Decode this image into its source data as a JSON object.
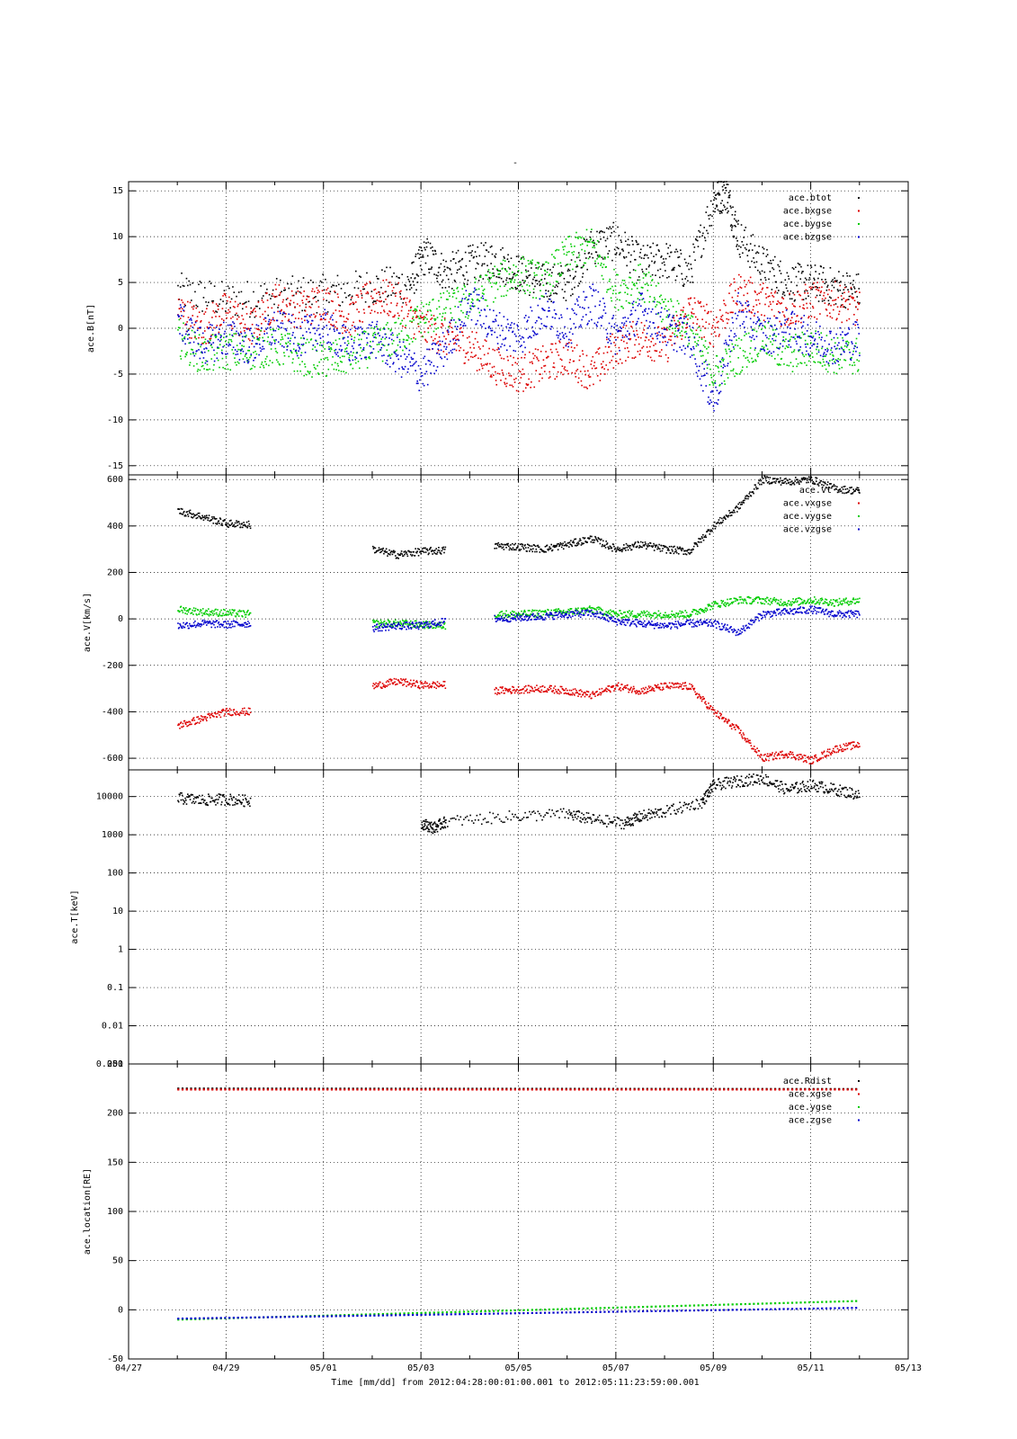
{
  "figure": {
    "title": "-",
    "x_axis_title": "Time [mm/dd]  from 2012:04:28:00:01:00.001  to  2012:05:11:23:59:00.001",
    "x_tick_labels": [
      "04/27",
      "04/29",
      "05/01",
      "05/03",
      "05/05",
      "05/07",
      "05/09",
      "05/11",
      "05/13"
    ],
    "x_range_days": [
      "2012-04-27",
      "2012-05-13"
    ]
  },
  "colors": {
    "black": "#000000",
    "red": "#dd0000",
    "green": "#00cc00",
    "blue": "#0000cc"
  },
  "chart_data": [
    {
      "type": "scatter",
      "ylabel": "ace.B[nT]",
      "ylim": [
        -16,
        16
      ],
      "y_ticks": [
        -15,
        -10,
        -5,
        0,
        5,
        10,
        15
      ],
      "y_tick_labels": [
        "-15",
        "-10",
        "-5",
        "0",
        "5",
        "10",
        "15"
      ],
      "grid": true,
      "legend": "top-right",
      "series": [
        {
          "name": "ace.btot",
          "color": "black",
          "x": [
            "04/28 00:00",
            "04/29 00:00",
            "04/30 00:00",
            "05/01 00:00",
            "05/02 00:00",
            "05/02 18:00",
            "05/03 02:00",
            "05/03 12:00",
            "05/04 00:00",
            "05/04 12:00",
            "05/05 00:00",
            "05/05 12:00",
            "05/06 00:00",
            "05/06 12:00",
            "05/07 00:00",
            "05/07 12:00",
            "05/08 00:00",
            "05/08 12:00",
            "05/09 00:00",
            "05/09 06:00",
            "05/09 12:00",
            "05/10 00:00",
            "05/10 12:00",
            "05/11 00:00",
            "05/11 12:00",
            "05/12 00:00"
          ],
          "y": [
            4,
            3,
            3.5,
            3.8,
            4.5,
            4.8,
            8,
            6,
            7,
            7.5,
            6,
            5,
            5,
            9,
            9.5,
            7,
            7.5,
            6,
            14,
            15,
            10,
            7,
            5,
            5,
            4.5,
            4
          ]
        },
        {
          "name": "ace.bxgse",
          "color": "red",
          "x": [
            "04/28 00:00",
            "04/28 12:00",
            "04/29 00:00",
            "04/29 12:00",
            "04/30 00:00",
            "04/30 12:00",
            "05/01 00:00",
            "05/01 12:00",
            "05/02 00:00",
            "05/02 12:00",
            "05/03 00:00",
            "05/03 12:00",
            "05/04 00:00",
            "05/04 12:00",
            "05/05 00:00",
            "05/05 12:00",
            "05/06 00:00",
            "05/06 12:00",
            "05/07 00:00",
            "05/07 12:00",
            "05/08 00:00",
            "05/08 12:00",
            "05/09 00:00",
            "05/09 12:00",
            "05/10 00:00",
            "05/10 12:00",
            "05/11 00:00",
            "05/11 12:00",
            "05/12 00:00"
          ],
          "y": [
            2,
            0,
            2,
            0,
            3,
            2,
            3,
            1,
            3.5,
            3,
            0,
            -1,
            -2,
            -4,
            -5,
            -4,
            -3,
            -5,
            -2,
            -1,
            -2,
            2,
            0,
            4,
            3,
            2,
            3,
            3,
            2
          ]
        },
        {
          "name": "ace.bygse",
          "color": "green",
          "x": [
            "04/28 00:00",
            "04/28 12:00",
            "04/29 00:00",
            "04/29 12:00",
            "04/30 00:00",
            "04/30 12:00",
            "05/01 00:00",
            "05/01 12:00",
            "05/02 00:00",
            "05/02 12:00",
            "05/03 00:00",
            "05/03 12:00",
            "05/04 00:00",
            "05/04 12:00",
            "05/05 00:00",
            "05/05 12:00",
            "05/06 00:00",
            "05/06 12:00",
            "05/07 00:00",
            "05/07 12:00",
            "05/08 00:00",
            "05/08 12:00",
            "05/09 00:00",
            "05/09 12:00",
            "05/10 00:00",
            "05/10 12:00",
            "05/11 00:00",
            "05/11 12:00",
            "05/12 00:00"
          ],
          "y": [
            -1,
            -3,
            -2.5,
            -2.5,
            -2,
            -3,
            -3.5,
            -3,
            -2,
            -1,
            1,
            2,
            3,
            5,
            6,
            5,
            8,
            9,
            4,
            5,
            2,
            0,
            -5,
            -3,
            -1,
            -3,
            -2,
            -3,
            -3
          ]
        },
        {
          "name": "ace.bzgse",
          "color": "blue",
          "x": [
            "04/28 00:00",
            "04/28 12:00",
            "04/29 00:00",
            "04/29 12:00",
            "04/30 00:00",
            "04/30 12:00",
            "05/01 00:00",
            "05/01 12:00",
            "05/02 00:00",
            "05/02 12:00",
            "05/03 00:00",
            "05/03 12:00",
            "05/04 00:00",
            "05/04 12:00",
            "05/05 00:00",
            "05/05 12:00",
            "05/06 00:00",
            "05/06 12:00",
            "05/07 00:00",
            "05/07 12:00",
            "05/08 00:00",
            "05/08 12:00",
            "05/09 00:00",
            "05/09 12:00",
            "05/10 00:00",
            "05/10 12:00",
            "05/11 00:00",
            "05/11 12:00",
            "05/12 00:00"
          ],
          "y": [
            1,
            -2,
            -1,
            -2,
            0,
            -1,
            0,
            -2,
            -1,
            -3,
            -5,
            -2,
            3,
            0,
            -1,
            2,
            0,
            3,
            -1,
            2,
            0,
            -1,
            -8,
            2,
            -1,
            0,
            -1,
            -2,
            -1
          ]
        }
      ]
    },
    {
      "type": "scatter",
      "ylabel": "ace.V[km/s]",
      "ylim": [
        -650,
        620
      ],
      "y_ticks": [
        -600,
        -400,
        -200,
        0,
        200,
        400,
        600
      ],
      "y_tick_labels": [
        "-600",
        "-400",
        "-200",
        "0",
        "200",
        "400",
        "600"
      ],
      "grid": true,
      "legend": "top-right",
      "series": [
        {
          "name": "ace.vt",
          "color": "black",
          "x": [
            "04/28 00:00",
            "04/28 12:00",
            "04/29 00:00",
            "04/29 12:00",
            "05/02 00:00",
            "05/02 12:00",
            "05/03 00:00",
            "05/03 12:00",
            "05/04 00:00",
            "05/04 12:00",
            "05/05 00:00",
            "05/05 12:00",
            "05/06 00:00",
            "05/06 12:00",
            "05/07 00:00",
            "05/07 12:00",
            "05/08 00:00",
            "05/08 12:00",
            "05/09 00:00",
            "05/09 12:00",
            "05/10 00:00",
            "05/10 12:00",
            "05/11 00:00",
            "05/11 12:00",
            "05/12 00:00"
          ],
          "y": [
            465,
            440,
            410,
            405,
            300,
            275,
            290,
            295,
            null,
            315,
            310,
            300,
            320,
            345,
            300,
            320,
            300,
            290,
            400,
            480,
            600,
            590,
            600,
            560,
            550
          ]
        },
        {
          "name": "ace.vxgse",
          "color": "red",
          "x": [
            "04/28 00:00",
            "04/28 12:00",
            "04/29 00:00",
            "04/29 12:00",
            "05/02 00:00",
            "05/02 12:00",
            "05/03 00:00",
            "05/03 12:00",
            "05/04 00:00",
            "05/04 12:00",
            "05/05 00:00",
            "05/05 12:00",
            "05/06 00:00",
            "05/06 12:00",
            "05/07 00:00",
            "05/07 12:00",
            "05/08 00:00",
            "05/08 12:00",
            "05/09 00:00",
            "05/09 12:00",
            "05/10 00:00",
            "05/10 12:00",
            "05/11 00:00",
            "05/11 12:00",
            "05/12 00:00"
          ],
          "y": [
            -460,
            -430,
            -400,
            -400,
            -290,
            -270,
            -285,
            -285,
            null,
            -310,
            -305,
            -300,
            -310,
            -330,
            -290,
            -310,
            -290,
            -290,
            -400,
            -480,
            -600,
            -580,
            -610,
            -560,
            -540
          ]
        },
        {
          "name": "ace.vygse",
          "color": "green",
          "x": [
            "04/28 00:00",
            "04/28 12:00",
            "04/29 00:00",
            "04/29 12:00",
            "05/02 00:00",
            "05/02 12:00",
            "05/03 00:00",
            "05/03 12:00",
            "05/04 00:00",
            "05/04 12:00",
            "05/05 00:00",
            "05/05 12:00",
            "05/06 00:00",
            "05/06 12:00",
            "05/07 00:00",
            "05/07 12:00",
            "05/08 00:00",
            "05/08 12:00",
            "05/09 00:00",
            "05/09 12:00",
            "05/10 00:00",
            "05/10 12:00",
            "05/11 00:00",
            "05/11 12:00",
            "05/12 00:00"
          ],
          "y": [
            40,
            30,
            25,
            20,
            -20,
            -20,
            -25,
            -30,
            null,
            20,
            20,
            25,
            30,
            40,
            20,
            20,
            20,
            20,
            60,
            80,
            80,
            70,
            80,
            70,
            80
          ]
        },
        {
          "name": "ace.vzgse",
          "color": "blue",
          "x": [
            "04/28 00:00",
            "04/28 12:00",
            "04/29 00:00",
            "04/29 12:00",
            "05/02 00:00",
            "05/02 12:00",
            "05/03 00:00",
            "05/03 12:00",
            "05/04 00:00",
            "05/04 12:00",
            "05/05 00:00",
            "05/05 12:00",
            "05/06 00:00",
            "05/06 12:00",
            "05/07 00:00",
            "05/07 12:00",
            "05/08 00:00",
            "05/08 12:00",
            "05/09 00:00",
            "05/09 12:00",
            "05/10 00:00",
            "05/10 12:00",
            "05/11 00:00",
            "05/11 12:00",
            "05/12 00:00"
          ],
          "y": [
            -30,
            -20,
            -25,
            -20,
            -40,
            -30,
            -30,
            -10,
            null,
            0,
            5,
            10,
            20,
            25,
            -10,
            -20,
            -30,
            -20,
            -20,
            -60,
            20,
            30,
            40,
            20,
            20
          ]
        }
      ]
    },
    {
      "type": "scatter",
      "ylabel": "ace.T[keV]",
      "yscale": "log",
      "ylim": [
        0.001,
        50000
      ],
      "y_ticks": [
        0.001,
        0.01,
        0.1,
        1,
        10,
        100,
        1000,
        10000
      ],
      "y_tick_labels": [
        "0.001",
        "0.01",
        "0.1",
        "1",
        "10",
        "100",
        "1000",
        "10000"
      ],
      "grid": true,
      "series": [
        {
          "name": "",
          "color": "black",
          "x": [
            "04/28 00:00",
            "04/28 12:00",
            "04/29 00:00",
            "04/29 12:00",
            "05/03 00:00",
            "05/03 06:00",
            "05/03 12:00",
            "05/04 20:00",
            "05/06 00:00",
            "05/06 12:00",
            "05/07 04:00",
            "05/07 12:00",
            "05/08 00:00",
            "05/08 18:00",
            "05/09 00:00",
            "05/09 12:00",
            "05/10 00:00",
            "05/10 12:00",
            "05/11 00:00",
            "05/11 12:00",
            "05/12 00:00"
          ],
          "y": [
            9000,
            8000,
            8500,
            7500,
            2000,
            1500,
            2200,
            3000,
            3500,
            2500,
            2000,
            3000,
            4000,
            7000,
            20000,
            25000,
            30000,
            15000,
            20000,
            15000,
            11000
          ]
        }
      ]
    },
    {
      "type": "scatter",
      "ylabel": "ace.location[RE]",
      "ylim": [
        -50,
        250
      ],
      "y_ticks": [
        -50,
        0,
        50,
        100,
        150,
        200,
        250
      ],
      "y_tick_labels": [
        "-50",
        "0",
        "50",
        "100",
        "150",
        "200",
        "250"
      ],
      "grid": true,
      "legend": "top-right",
      "series": [
        {
          "name": "ace.Rdist",
          "color": "black",
          "x": [
            "04/28 00:00",
            "05/12 00:00"
          ],
          "y": [
            225,
            224.5
          ]
        },
        {
          "name": "ace.xgse",
          "color": "red",
          "x": [
            "04/28 00:00",
            "05/12 00:00"
          ],
          "y": [
            224,
            224
          ]
        },
        {
          "name": "ace.ygse",
          "color": "green",
          "x": [
            "04/28 00:00",
            "05/12 00:00"
          ],
          "y": [
            -10,
            9
          ]
        },
        {
          "name": "ace.zgse",
          "color": "blue",
          "x": [
            "04/28 00:00",
            "05/12 00:00"
          ],
          "y": [
            -9,
            2
          ]
        }
      ]
    }
  ]
}
